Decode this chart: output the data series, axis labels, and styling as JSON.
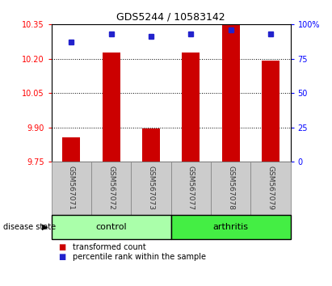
{
  "title": "GDS5244 / 10583142",
  "samples": [
    "GSM567071",
    "GSM567072",
    "GSM567073",
    "GSM567077",
    "GSM567078",
    "GSM567079"
  ],
  "bar_values": [
    9.855,
    10.225,
    9.895,
    10.225,
    10.348,
    10.192
  ],
  "percentile_values": [
    87,
    93,
    91,
    93,
    96,
    93
  ],
  "y_min": 9.75,
  "y_max": 10.35,
  "y_ticks": [
    9.75,
    9.9,
    10.05,
    10.2,
    10.35
  ],
  "y2_ticks": [
    0,
    25,
    50,
    75,
    100
  ],
  "bar_color": "#cc0000",
  "dot_color": "#2222cc",
  "control_color": "#aaffaa",
  "arthritis_color": "#44ee44",
  "gray_box_color": "#cccccc",
  "group_label": "disease state",
  "legend_items": [
    {
      "label": "transformed count",
      "color": "#cc0000"
    },
    {
      "label": "percentile rank within the sample",
      "color": "#2222cc"
    }
  ],
  "title_fontsize": 9,
  "tick_fontsize": 7,
  "sample_fontsize": 6.5
}
